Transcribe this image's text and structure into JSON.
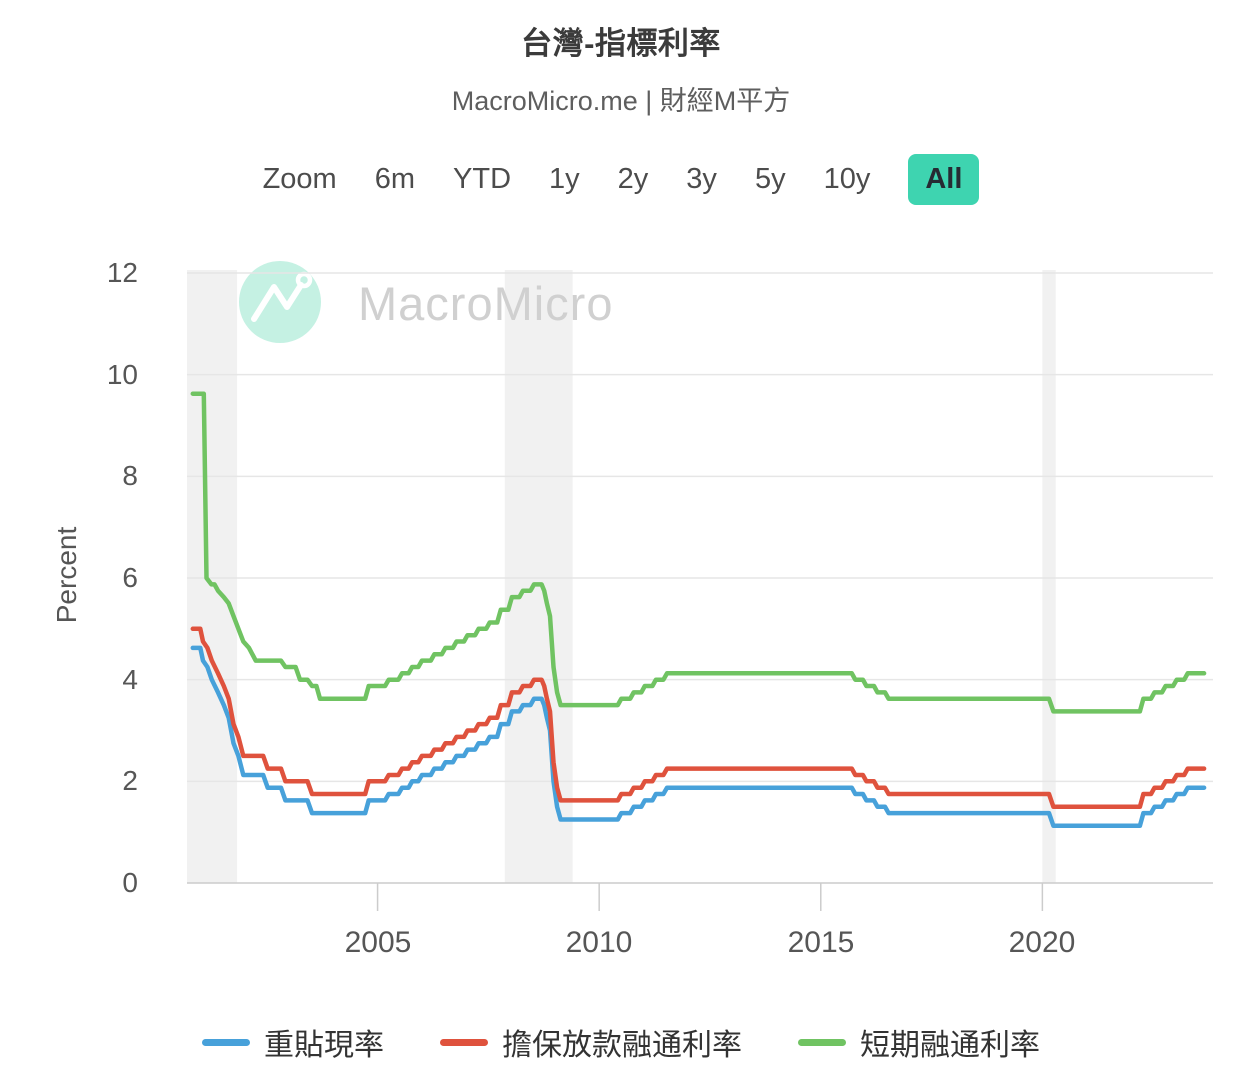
{
  "header": {
    "title": "台灣-指標利率",
    "subtitle": "MacroMicro.me | 財經M平方"
  },
  "toolbar": {
    "zoom_label": "Zoom",
    "buttons": [
      "6m",
      "YTD",
      "1y",
      "2y",
      "3y",
      "5y",
      "10y",
      "All"
    ],
    "active": "All",
    "active_bg_color": "#3ed4b0"
  },
  "watermark": {
    "text": "MacroMicro",
    "logo_circle_color": "#c5f1e3"
  },
  "chart_data": {
    "type": "line",
    "title": "台灣-指標利率",
    "xlabel": "",
    "ylabel": "Percent",
    "ylim": [
      0,
      12
    ],
    "yticks": [
      0,
      2,
      4,
      6,
      8,
      10,
      12
    ],
    "xticks": [
      2005,
      2010,
      2015,
      2020
    ],
    "x_range": [
      2000.7,
      2023.85
    ],
    "grid": "horizontal",
    "gridline_color": "#e6e6e6",
    "axis_line_color": "#cccccc",
    "legend_position": "bottom",
    "band_color": "#f1f1f1",
    "recession_bands": [
      [
        2000.7,
        2001.83
      ],
      [
        2007.87,
        2009.4
      ],
      [
        2020.0,
        2020.3
      ]
    ],
    "series": [
      {
        "name": "重貼現率",
        "color": "#47A1DA",
        "points": [
          [
            2000.83,
            4.625
          ],
          [
            2001.0,
            4.625
          ],
          [
            2001.06,
            4.375
          ],
          [
            2001.16,
            4.25
          ],
          [
            2001.26,
            4.0
          ],
          [
            2001.4,
            3.75
          ],
          [
            2001.53,
            3.5
          ],
          [
            2001.64,
            3.25
          ],
          [
            2001.75,
            2.75
          ],
          [
            2001.86,
            2.5
          ],
          [
            2001.97,
            2.125
          ],
          [
            2002.42,
            2.125
          ],
          [
            2002.52,
            1.875
          ],
          [
            2002.82,
            1.875
          ],
          [
            2002.92,
            1.625
          ],
          [
            2003.42,
            1.625
          ],
          [
            2003.52,
            1.375
          ],
          [
            2004.72,
            1.375
          ],
          [
            2004.8,
            1.625
          ],
          [
            2005.17,
            1.625
          ],
          [
            2005.25,
            1.75
          ],
          [
            2005.47,
            1.75
          ],
          [
            2005.55,
            1.875
          ],
          [
            2005.7,
            1.875
          ],
          [
            2005.78,
            2.0
          ],
          [
            2005.92,
            2.0
          ],
          [
            2006.0,
            2.125
          ],
          [
            2006.2,
            2.125
          ],
          [
            2006.28,
            2.25
          ],
          [
            2006.45,
            2.25
          ],
          [
            2006.53,
            2.375
          ],
          [
            2006.7,
            2.375
          ],
          [
            2006.78,
            2.5
          ],
          [
            2006.95,
            2.5
          ],
          [
            2007.03,
            2.625
          ],
          [
            2007.2,
            2.625
          ],
          [
            2007.28,
            2.75
          ],
          [
            2007.45,
            2.75
          ],
          [
            2007.53,
            2.875
          ],
          [
            2007.7,
            2.875
          ],
          [
            2007.78,
            3.125
          ],
          [
            2007.95,
            3.125
          ],
          [
            2008.03,
            3.375
          ],
          [
            2008.2,
            3.375
          ],
          [
            2008.28,
            3.5
          ],
          [
            2008.45,
            3.5
          ],
          [
            2008.53,
            3.625
          ],
          [
            2008.7,
            3.625
          ],
          [
            2008.76,
            3.5
          ],
          [
            2008.82,
            3.25
          ],
          [
            2008.89,
            3.0
          ],
          [
            2008.97,
            2.0
          ],
          [
            2009.05,
            1.5
          ],
          [
            2009.13,
            1.25
          ],
          [
            2010.42,
            1.25
          ],
          [
            2010.5,
            1.375
          ],
          [
            2010.7,
            1.375
          ],
          [
            2010.78,
            1.5
          ],
          [
            2010.95,
            1.5
          ],
          [
            2011.03,
            1.625
          ],
          [
            2011.2,
            1.625
          ],
          [
            2011.28,
            1.75
          ],
          [
            2011.45,
            1.75
          ],
          [
            2011.53,
            1.875
          ],
          [
            2015.7,
            1.875
          ],
          [
            2015.78,
            1.75
          ],
          [
            2015.95,
            1.75
          ],
          [
            2016.03,
            1.625
          ],
          [
            2016.2,
            1.625
          ],
          [
            2016.28,
            1.5
          ],
          [
            2016.45,
            1.5
          ],
          [
            2016.53,
            1.375
          ],
          [
            2020.15,
            1.375
          ],
          [
            2020.25,
            1.125
          ],
          [
            2022.2,
            1.125
          ],
          [
            2022.28,
            1.375
          ],
          [
            2022.45,
            1.375
          ],
          [
            2022.53,
            1.5
          ],
          [
            2022.7,
            1.5
          ],
          [
            2022.78,
            1.625
          ],
          [
            2022.95,
            1.625
          ],
          [
            2023.03,
            1.75
          ],
          [
            2023.2,
            1.75
          ],
          [
            2023.28,
            1.875
          ],
          [
            2023.65,
            1.875
          ]
        ]
      },
      {
        "name": "擔保放款融通利率",
        "color": "#DF523D",
        "points": [
          [
            2000.83,
            5.0
          ],
          [
            2001.0,
            5.0
          ],
          [
            2001.06,
            4.75
          ],
          [
            2001.16,
            4.625
          ],
          [
            2001.26,
            4.375
          ],
          [
            2001.4,
            4.125
          ],
          [
            2001.53,
            3.875
          ],
          [
            2001.64,
            3.625
          ],
          [
            2001.75,
            3.125
          ],
          [
            2001.86,
            2.875
          ],
          [
            2001.97,
            2.5
          ],
          [
            2002.42,
            2.5
          ],
          [
            2002.52,
            2.25
          ],
          [
            2002.82,
            2.25
          ],
          [
            2002.92,
            2.0
          ],
          [
            2003.42,
            2.0
          ],
          [
            2003.52,
            1.75
          ],
          [
            2004.72,
            1.75
          ],
          [
            2004.8,
            2.0
          ],
          [
            2005.17,
            2.0
          ],
          [
            2005.25,
            2.125
          ],
          [
            2005.47,
            2.125
          ],
          [
            2005.55,
            2.25
          ],
          [
            2005.7,
            2.25
          ],
          [
            2005.78,
            2.375
          ],
          [
            2005.92,
            2.375
          ],
          [
            2006.0,
            2.5
          ],
          [
            2006.2,
            2.5
          ],
          [
            2006.28,
            2.625
          ],
          [
            2006.45,
            2.625
          ],
          [
            2006.53,
            2.75
          ],
          [
            2006.7,
            2.75
          ],
          [
            2006.78,
            2.875
          ],
          [
            2006.95,
            2.875
          ],
          [
            2007.03,
            3.0
          ],
          [
            2007.2,
            3.0
          ],
          [
            2007.28,
            3.125
          ],
          [
            2007.45,
            3.125
          ],
          [
            2007.53,
            3.25
          ],
          [
            2007.7,
            3.25
          ],
          [
            2007.78,
            3.5
          ],
          [
            2007.95,
            3.5
          ],
          [
            2008.03,
            3.75
          ],
          [
            2008.2,
            3.75
          ],
          [
            2008.28,
            3.875
          ],
          [
            2008.45,
            3.875
          ],
          [
            2008.53,
            4.0
          ],
          [
            2008.7,
            4.0
          ],
          [
            2008.76,
            3.875
          ],
          [
            2008.82,
            3.625
          ],
          [
            2008.89,
            3.375
          ],
          [
            2008.97,
            2.375
          ],
          [
            2009.05,
            1.875
          ],
          [
            2009.13,
            1.625
          ],
          [
            2010.42,
            1.625
          ],
          [
            2010.5,
            1.75
          ],
          [
            2010.7,
            1.75
          ],
          [
            2010.78,
            1.875
          ],
          [
            2010.95,
            1.875
          ],
          [
            2011.03,
            2.0
          ],
          [
            2011.2,
            2.0
          ],
          [
            2011.28,
            2.125
          ],
          [
            2011.45,
            2.125
          ],
          [
            2011.53,
            2.25
          ],
          [
            2015.7,
            2.25
          ],
          [
            2015.78,
            2.125
          ],
          [
            2015.95,
            2.125
          ],
          [
            2016.03,
            2.0
          ],
          [
            2016.2,
            2.0
          ],
          [
            2016.28,
            1.875
          ],
          [
            2016.45,
            1.875
          ],
          [
            2016.53,
            1.75
          ],
          [
            2020.15,
            1.75
          ],
          [
            2020.25,
            1.5
          ],
          [
            2022.2,
            1.5
          ],
          [
            2022.28,
            1.75
          ],
          [
            2022.45,
            1.75
          ],
          [
            2022.53,
            1.875
          ],
          [
            2022.7,
            1.875
          ],
          [
            2022.78,
            2.0
          ],
          [
            2022.95,
            2.0
          ],
          [
            2023.03,
            2.125
          ],
          [
            2023.2,
            2.125
          ],
          [
            2023.28,
            2.25
          ],
          [
            2023.65,
            2.25
          ]
        ]
      },
      {
        "name": "短期融通利率",
        "color": "#70C362",
        "points": [
          [
            2000.83,
            9.625
          ],
          [
            2001.08,
            9.625
          ],
          [
            2001.14,
            6.0
          ],
          [
            2001.25,
            5.875
          ],
          [
            2001.32,
            5.875
          ],
          [
            2001.4,
            5.75
          ],
          [
            2001.53,
            5.625
          ],
          [
            2001.64,
            5.5
          ],
          [
            2001.75,
            5.25
          ],
          [
            2001.86,
            5.0
          ],
          [
            2001.97,
            4.75
          ],
          [
            2002.1,
            4.625
          ],
          [
            2002.25,
            4.375
          ],
          [
            2002.82,
            4.375
          ],
          [
            2002.92,
            4.25
          ],
          [
            2003.15,
            4.25
          ],
          [
            2003.25,
            4.0
          ],
          [
            2003.42,
            4.0
          ],
          [
            2003.52,
            3.875
          ],
          [
            2003.62,
            3.875
          ],
          [
            2003.7,
            3.625
          ],
          [
            2004.72,
            3.625
          ],
          [
            2004.8,
            3.875
          ],
          [
            2005.17,
            3.875
          ],
          [
            2005.25,
            4.0
          ],
          [
            2005.47,
            4.0
          ],
          [
            2005.55,
            4.125
          ],
          [
            2005.7,
            4.125
          ],
          [
            2005.78,
            4.25
          ],
          [
            2005.92,
            4.25
          ],
          [
            2006.0,
            4.375
          ],
          [
            2006.2,
            4.375
          ],
          [
            2006.28,
            4.5
          ],
          [
            2006.45,
            4.5
          ],
          [
            2006.53,
            4.625
          ],
          [
            2006.7,
            4.625
          ],
          [
            2006.78,
            4.75
          ],
          [
            2006.95,
            4.75
          ],
          [
            2007.03,
            4.875
          ],
          [
            2007.2,
            4.875
          ],
          [
            2007.28,
            5.0
          ],
          [
            2007.45,
            5.0
          ],
          [
            2007.53,
            5.125
          ],
          [
            2007.7,
            5.125
          ],
          [
            2007.78,
            5.375
          ],
          [
            2007.95,
            5.375
          ],
          [
            2008.03,
            5.625
          ],
          [
            2008.2,
            5.625
          ],
          [
            2008.28,
            5.75
          ],
          [
            2008.45,
            5.75
          ],
          [
            2008.53,
            5.875
          ],
          [
            2008.7,
            5.875
          ],
          [
            2008.76,
            5.75
          ],
          [
            2008.82,
            5.5
          ],
          [
            2008.89,
            5.25
          ],
          [
            2008.97,
            4.25
          ],
          [
            2009.05,
            3.75
          ],
          [
            2009.13,
            3.5
          ],
          [
            2010.42,
            3.5
          ],
          [
            2010.5,
            3.625
          ],
          [
            2010.7,
            3.625
          ],
          [
            2010.78,
            3.75
          ],
          [
            2010.95,
            3.75
          ],
          [
            2011.03,
            3.875
          ],
          [
            2011.2,
            3.875
          ],
          [
            2011.28,
            4.0
          ],
          [
            2011.45,
            4.0
          ],
          [
            2011.53,
            4.125
          ],
          [
            2015.7,
            4.125
          ],
          [
            2015.78,
            4.0
          ],
          [
            2015.95,
            4.0
          ],
          [
            2016.03,
            3.875
          ],
          [
            2016.2,
            3.875
          ],
          [
            2016.28,
            3.75
          ],
          [
            2016.45,
            3.75
          ],
          [
            2016.53,
            3.625
          ],
          [
            2020.15,
            3.625
          ],
          [
            2020.25,
            3.375
          ],
          [
            2022.2,
            3.375
          ],
          [
            2022.28,
            3.625
          ],
          [
            2022.45,
            3.625
          ],
          [
            2022.53,
            3.75
          ],
          [
            2022.7,
            3.75
          ],
          [
            2022.78,
            3.875
          ],
          [
            2022.95,
            3.875
          ],
          [
            2023.03,
            4.0
          ],
          [
            2023.2,
            4.0
          ],
          [
            2023.28,
            4.125
          ],
          [
            2023.65,
            4.125
          ]
        ]
      }
    ]
  }
}
